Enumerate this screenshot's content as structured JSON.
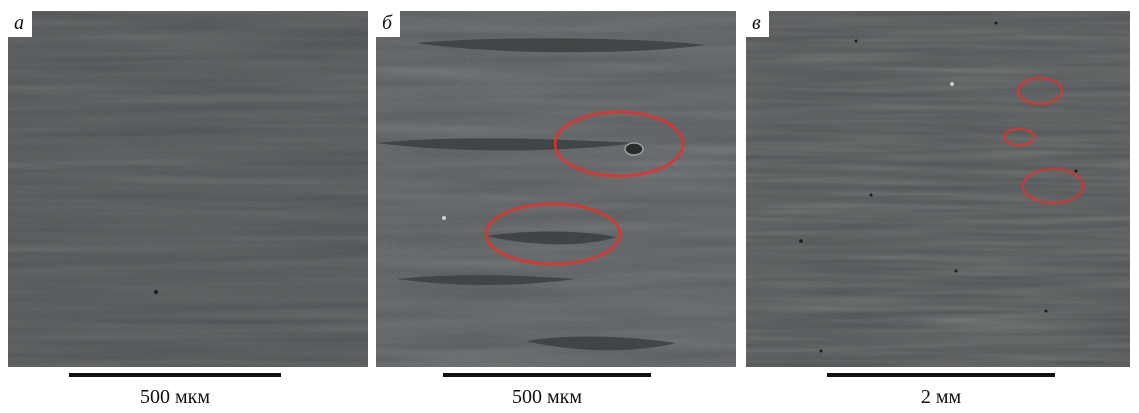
{
  "colors": {
    "background": "#ffffff",
    "micrograph": "#44484a",
    "highlight_ring": "#e8302a"
  },
  "panels": [
    {
      "label": "а",
      "scale": "500 мкм",
      "highlighted_regions": 0
    },
    {
      "label": "б",
      "scale": "500 мкм",
      "highlighted_regions": 2
    },
    {
      "label": "в",
      "scale": "2 мм",
      "highlighted_regions": 3
    }
  ]
}
